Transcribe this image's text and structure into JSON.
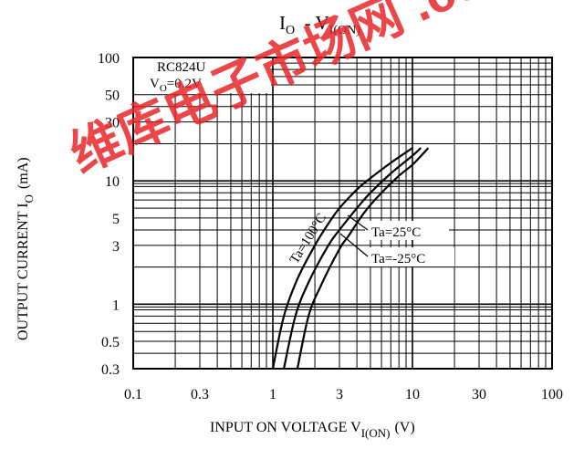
{
  "watermark": {
    "text": "维库电子市场网 .com.cn",
    "color": "#e8262a"
  },
  "chart_data": {
    "type": "line",
    "title": {
      "main": "I",
      "main_sub": "O",
      "sep": "  - V",
      "sep_sub": "I(ON)"
    },
    "xlabel": {
      "main": "INPUT ON VOLTAGE V",
      "sub": "I(ON)",
      "unit": "(V)"
    },
    "ylabel": {
      "main": "OUTPUT CURRENT I",
      "sub": "O",
      "unit": "(mA)"
    },
    "x_scale": "log",
    "y_scale": "log",
    "xlim": [
      0.1,
      100
    ],
    "ylim": [
      0.3,
      100
    ],
    "x_ticks": [
      {
        "value": 0.1,
        "label": "0.1"
      },
      {
        "value": 0.3,
        "label": "0.3"
      },
      {
        "value": 1,
        "label": "1"
      },
      {
        "value": 3,
        "label": "3"
      },
      {
        "value": 10,
        "label": "10"
      },
      {
        "value": 30,
        "label": "30"
      },
      {
        "value": 100,
        "label": "100"
      }
    ],
    "y_ticks": [
      {
        "value": 0.3,
        "label": "0.3"
      },
      {
        "value": 0.5,
        "label": "0.5"
      },
      {
        "value": 1,
        "label": "1"
      },
      {
        "value": 3,
        "label": "3"
      },
      {
        "value": 5,
        "label": "5"
      },
      {
        "value": 10,
        "label": "10"
      },
      {
        "value": 30,
        "label": "30"
      },
      {
        "value": 50,
        "label": "50"
      },
      {
        "value": 100,
        "label": "100"
      }
    ],
    "grid": true,
    "legend_box": {
      "part": "RC824U",
      "cond": "V",
      "cond_sub": "O",
      "cond_val": "=0.2V"
    },
    "series": [
      {
        "name": "Ta=100°C",
        "points": [
          [
            1.0,
            0.3
          ],
          [
            1.2,
            0.8
          ],
          [
            1.5,
            1.6
          ],
          [
            2.0,
            3.0
          ],
          [
            2.5,
            4.5
          ],
          [
            3.0,
            6.0
          ],
          [
            4.0,
            8.5
          ],
          [
            5.0,
            10.5
          ],
          [
            7.0,
            14.0
          ],
          [
            10.0,
            18.5
          ]
        ]
      },
      {
        "name": "Ta=25°C",
        "points": [
          [
            1.2,
            0.3
          ],
          [
            1.45,
            0.8
          ],
          [
            1.8,
            1.5
          ],
          [
            2.5,
            3.0
          ],
          [
            3.0,
            4.0
          ],
          [
            4.0,
            6.0
          ],
          [
            5.0,
            8.0
          ],
          [
            7.0,
            11.5
          ],
          [
            10.0,
            16.0
          ],
          [
            11.5,
            18.5
          ]
        ]
      },
      {
        "name": "Ta=-25°C",
        "points": [
          [
            1.5,
            0.3
          ],
          [
            1.8,
            0.8
          ],
          [
            2.2,
            1.4
          ],
          [
            3.0,
            2.8
          ],
          [
            3.5,
            3.6
          ],
          [
            4.5,
            5.5
          ],
          [
            6.0,
            8.0
          ],
          [
            8.0,
            11.0
          ],
          [
            10.0,
            13.5
          ],
          [
            13.0,
            18.5
          ]
        ]
      }
    ]
  }
}
